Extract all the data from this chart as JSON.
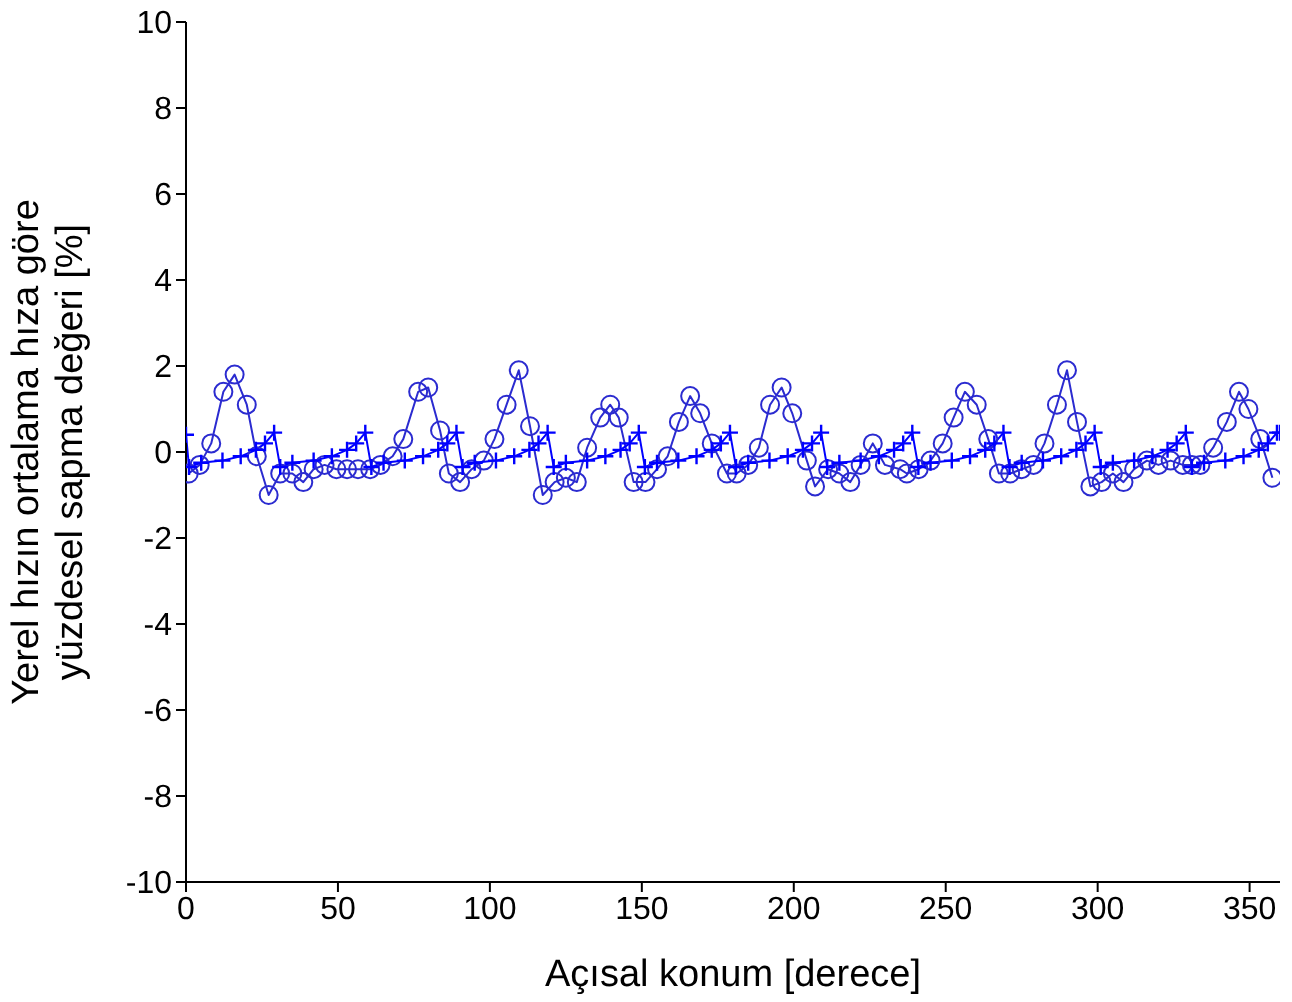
{
  "chart_data": {
    "type": "line",
    "xlabel": "Açısal konum [derece]",
    "ylabel": "Yerel hızın ortalama hıza göre yüzdesel sapma değeri [%]",
    "xlim": [
      0,
      360
    ],
    "xticks": [
      0,
      50,
      100,
      150,
      200,
      250,
      300,
      350
    ],
    "ylim": [
      -10,
      10
    ],
    "yticks": [
      -10,
      -8,
      -6,
      -4,
      -2,
      0,
      2,
      4,
      6,
      8,
      10
    ],
    "grid": false,
    "legend": false,
    "series": [
      {
        "color": "#2b2bd0",
        "marker": "circle",
        "x": [
          0.9,
          4.5,
          8.3,
          12.3,
          16,
          20,
          23.3,
          27.2,
          31,
          35,
          38.6,
          42,
          45.6,
          49.5,
          53,
          56.6,
          60.6,
          64,
          68,
          71.5,
          76.4,
          79.7,
          83.6,
          86.5,
          90.2,
          94,
          98,
          101.5,
          105.5,
          109.5,
          113.2,
          117.4,
          121.3,
          125,
          128.6,
          132,
          136.3,
          139.6,
          142.4,
          147.3,
          151.2,
          155,
          158.5,
          162.2,
          165.9,
          169.2,
          173,
          178,
          181.2,
          185,
          188.5,
          192.2,
          196,
          199.5,
          204.3,
          207,
          211.3,
          215,
          218.6,
          222,
          226,
          230,
          235,
          237.2,
          241.1,
          245,
          249,
          252.6,
          256.3,
          260.2,
          264,
          267.5,
          271.2,
          275,
          278.9,
          282.5,
          286.6,
          289.9,
          293.2,
          297.6,
          301.3,
          305,
          308.5,
          312,
          316.2,
          320,
          324,
          328,
          331,
          333.8,
          338,
          342.5,
          346.5,
          349.6,
          353.5,
          357.5
        ],
        "values": [
          -0.5,
          -0.3,
          0.2,
          1.4,
          1.8,
          1.1,
          -0.1,
          -1.0,
          -0.5,
          -0.5,
          -0.7,
          -0.4,
          -0.3,
          -0.4,
          -0.4,
          -0.4,
          -0.4,
          -0.3,
          -0.1,
          0.3,
          1.4,
          1.5,
          0.5,
          -0.5,
          -0.7,
          -0.4,
          -0.2,
          0.3,
          1.1,
          1.9,
          0.6,
          -1.0,
          -0.7,
          -0.6,
          -0.7,
          0.1,
          0.8,
          1.1,
          0.8,
          -0.7,
          -0.7,
          -0.4,
          -0.1,
          0.7,
          1.3,
          0.9,
          0.2,
          -0.5,
          -0.5,
          -0.3,
          0.1,
          1.1,
          1.5,
          0.9,
          -0.2,
          -0.8,
          -0.4,
          -0.5,
          -0.7,
          -0.3,
          0.2,
          -0.3,
          -0.4,
          -0.5,
          -0.4,
          -0.2,
          0.2,
          0.8,
          1.4,
          1.1,
          0.3,
          -0.5,
          -0.5,
          -0.4,
          -0.3,
          0.2,
          1.1,
          1.9,
          0.7,
          -0.8,
          -0.7,
          -0.5,
          -0.7,
          -0.4,
          -0.2,
          -0.3,
          -0.2,
          -0.3,
          -0.3,
          -0.3,
          0.1,
          0.7,
          1.4,
          1.0,
          0.3,
          -0.6
        ]
      },
      {
        "color": "#0000ff",
        "marker": "cross",
        "x": [
          0,
          1,
          5,
          12,
          18,
          23,
          26,
          29,
          31,
          35,
          42,
          48,
          53,
          56,
          59,
          61,
          65,
          72,
          78,
          83,
          86,
          89,
          91,
          95,
          102,
          108,
          113,
          116,
          119,
          121,
          125,
          132,
          138,
          143,
          146,
          149,
          151,
          155,
          162,
          168,
          173,
          176,
          179,
          181,
          185,
          192,
          198,
          203,
          206,
          209,
          211,
          215,
          222,
          228,
          233,
          236,
          239,
          241,
          245,
          252,
          258,
          263,
          266,
          269,
          271,
          275,
          282,
          288,
          293,
          296,
          299,
          301,
          305,
          312,
          318,
          323,
          326,
          329,
          331,
          335,
          342,
          348,
          353,
          356,
          359,
          360
        ],
        "values": [
          0.4,
          -0.35,
          -0.25,
          -0.2,
          -0.1,
          0.05,
          0.2,
          0.45,
          -0.35,
          -0.25,
          -0.2,
          -0.1,
          0.05,
          0.2,
          0.45,
          -0.35,
          -0.25,
          -0.2,
          -0.1,
          0.05,
          0.2,
          0.45,
          -0.35,
          -0.25,
          -0.2,
          -0.1,
          0.05,
          0.2,
          0.45,
          -0.35,
          -0.25,
          -0.2,
          -0.1,
          0.05,
          0.2,
          0.45,
          -0.35,
          -0.25,
          -0.2,
          -0.1,
          0.05,
          0.2,
          0.45,
          -0.35,
          -0.25,
          -0.2,
          -0.1,
          0.05,
          0.2,
          0.45,
          -0.35,
          -0.25,
          -0.2,
          -0.1,
          0.05,
          0.2,
          0.45,
          -0.35,
          -0.25,
          -0.2,
          -0.1,
          0.05,
          0.2,
          0.45,
          -0.35,
          -0.25,
          -0.2,
          -0.1,
          0.05,
          0.2,
          0.45,
          -0.35,
          -0.25,
          -0.2,
          -0.1,
          0.05,
          0.2,
          0.45,
          -0.35,
          -0.25,
          -0.2,
          -0.1,
          0.05,
          0.2,
          0.45,
          0.45
        ]
      }
    ]
  }
}
